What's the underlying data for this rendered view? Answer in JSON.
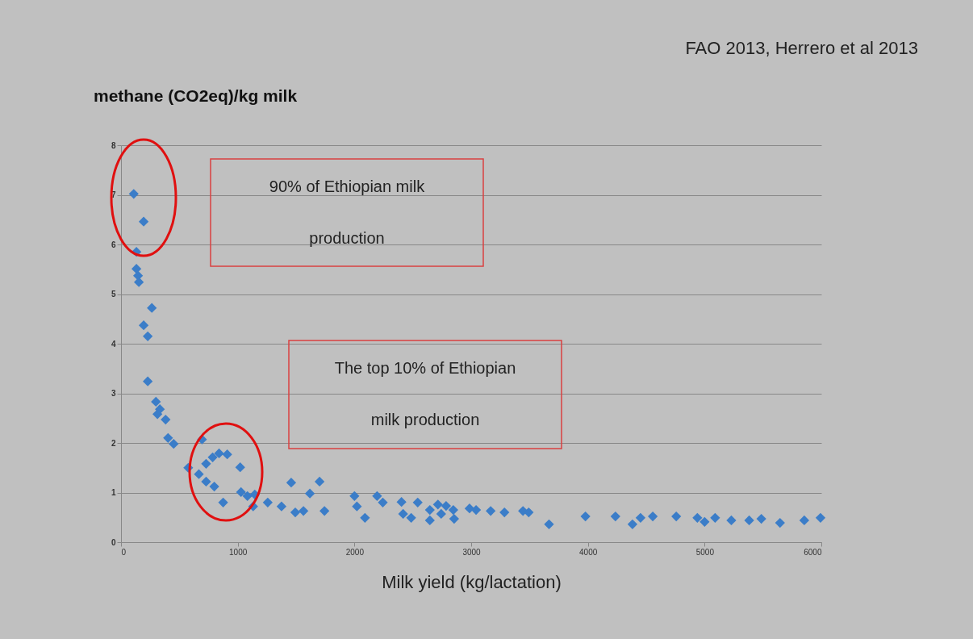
{
  "chart_data": {
    "type": "scatter",
    "ylabel": "methane (CO2eq)/kg milk",
    "xlabel": "Milk yield (kg/lactation)",
    "annotations": [
      "FAO 2013, Herrero et al 2013",
      "90% of Ethiopian milk\nproduction",
      "The top 10% of Ethiopian\nmilk production"
    ],
    "x": [
      109,
      194,
      132,
      132,
      146,
      153,
      264,
      194,
      229,
      229,
      299,
      333,
      312,
      382,
      403,
      451,
      694,
      576,
      667,
      729,
      785,
      840,
      910,
      729,
      799,
      875,
      1021,
      1028,
      1083,
      1146,
      1132,
      1257,
      1375,
      1458,
      1493,
      1563,
      1618,
      1701,
      1743,
      2000,
      2021,
      2090,
      2194,
      2243,
      2403,
      2417,
      2486,
      2542,
      2646,
      2646,
      2715,
      2743,
      2785,
      2854,
      2847,
      2986,
      3042,
      3167,
      3285,
      3444,
      3493,
      3667,
      3979,
      4236,
      4382,
      4451,
      4556,
      4757,
      4938,
      5000,
      5090,
      5229,
      5382,
      5486,
      5646,
      5854,
      5993
    ],
    "series": [
      {
        "color": "#3b7dc8",
        "values": [
          7.02,
          6.46,
          5.85,
          5.51,
          5.37,
          5.24,
          4.72,
          4.37,
          4.15,
          3.24,
          2.83,
          2.68,
          2.58,
          2.47,
          2.1,
          1.98,
          2.07,
          1.5,
          1.37,
          1.58,
          1.71,
          1.79,
          1.77,
          1.22,
          1.12,
          0.8,
          1.51,
          1.01,
          0.93,
          0.96,
          0.72,
          0.8,
          0.72,
          1.2,
          0.6,
          0.63,
          0.98,
          1.22,
          0.63,
          0.93,
          0.72,
          0.49,
          0.93,
          0.8,
          0.81,
          0.57,
          0.49,
          0.8,
          0.65,
          0.44,
          0.76,
          0.57,
          0.73,
          0.47,
          0.65,
          0.68,
          0.65,
          0.63,
          0.6,
          0.63,
          0.6,
          0.36,
          0.52,
          0.52,
          0.36,
          0.49,
          0.52,
          0.52,
          0.49,
          0.41,
          0.49,
          0.44,
          0.44,
          0.47,
          0.39,
          0.44,
          0.49
        ]
      }
    ],
    "xlim": [
      0,
      6000
    ],
    "xticks": [
      0,
      1000,
      2000,
      3000,
      4000,
      5000,
      6000
    ],
    "ylim": [
      0,
      8
    ],
    "yticks": [
      0,
      1,
      2,
      3,
      4,
      5,
      6,
      7,
      8
    ],
    "grid": "y",
    "marker": "diamond"
  }
}
